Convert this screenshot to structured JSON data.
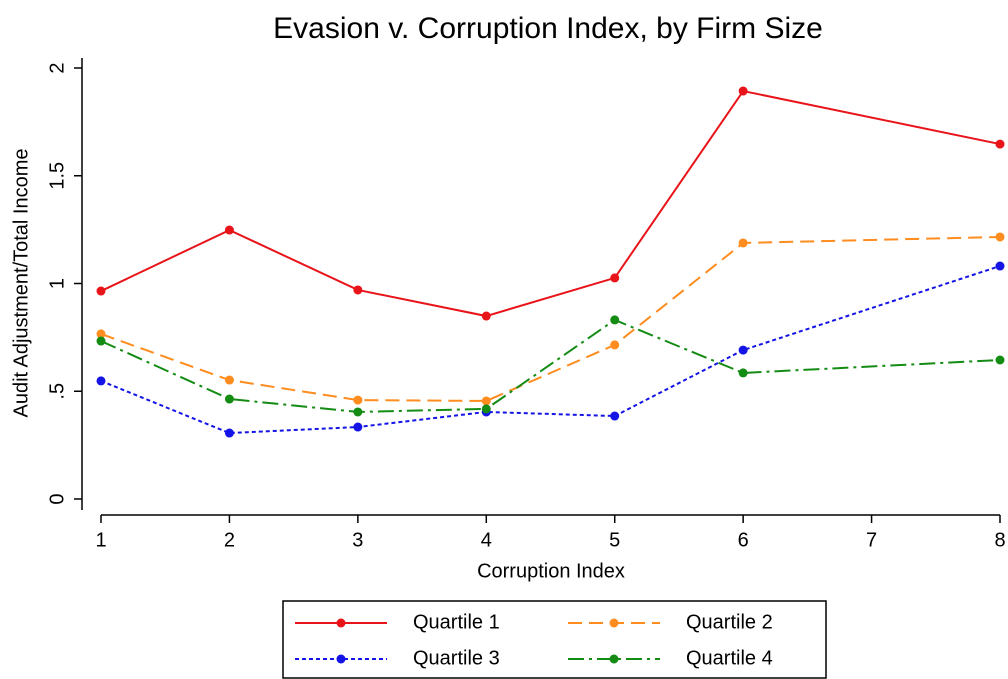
{
  "chart_data": {
    "type": "line",
    "title": "Evasion v. Corruption Index, by Firm Size",
    "x_label": "Corruption Index",
    "y_label": "Audit Adjustment/Total Income",
    "x": [
      1,
      2,
      3,
      4,
      5,
      6,
      8
    ],
    "series": [
      {
        "name": "Quartile 1",
        "color": "#e8141a",
        "dash": "solid",
        "values": [
          0.965,
          1.248,
          0.97,
          0.849,
          1.026,
          1.893,
          1.647
        ]
      },
      {
        "name": "Quartile 2",
        "color": "#ff8c1e",
        "dash": "dash",
        "values": [
          0.766,
          0.552,
          0.459,
          0.455,
          0.715,
          1.188,
          1.216
        ]
      },
      {
        "name": "Quartile 3",
        "color": "#1414e6",
        "dash": "dot",
        "values": [
          0.548,
          0.306,
          0.334,
          0.404,
          0.385,
          0.691,
          1.081
        ]
      },
      {
        "name": "Quartile 4",
        "color": "#148c14",
        "dash": "dashdot",
        "values": [
          0.733,
          0.464,
          0.404,
          0.418,
          0.831,
          0.585,
          0.645
        ]
      }
    ],
    "xlim": [
      1,
      8
    ],
    "xticks": [
      1,
      2,
      3,
      4,
      5,
      6,
      7,
      8
    ],
    "ylim": [
      0,
      2
    ],
    "yticks": [
      0,
      {
        "value": 0.5,
        "label": ".5"
      },
      1,
      1.5,
      2
    ],
    "grid": false,
    "legend": "bottom"
  }
}
